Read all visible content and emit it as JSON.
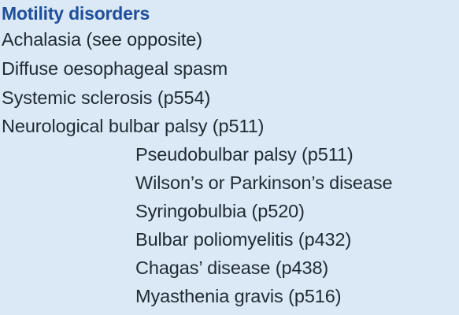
{
  "section": {
    "title": "Motility disorders",
    "items": [
      "Achalasia (see opposite)",
      "Diffuse oesophageal spasm",
      "Systemic sclerosis (p554)",
      "Neurological bulbar palsy (p511)",
      "Pseudobulbar palsy (p511)",
      "Wilson’s or Parkinson’s disease",
      "Syringobulbia (p520)",
      "Bulbar poliomyelitis (p432)",
      "Chagas’ disease (p438)",
      "Myasthenia gravis (p516)"
    ]
  },
  "colors": {
    "background": "#dbe9f6",
    "heading": "#1f4f9a",
    "text": "#1f2a33"
  }
}
